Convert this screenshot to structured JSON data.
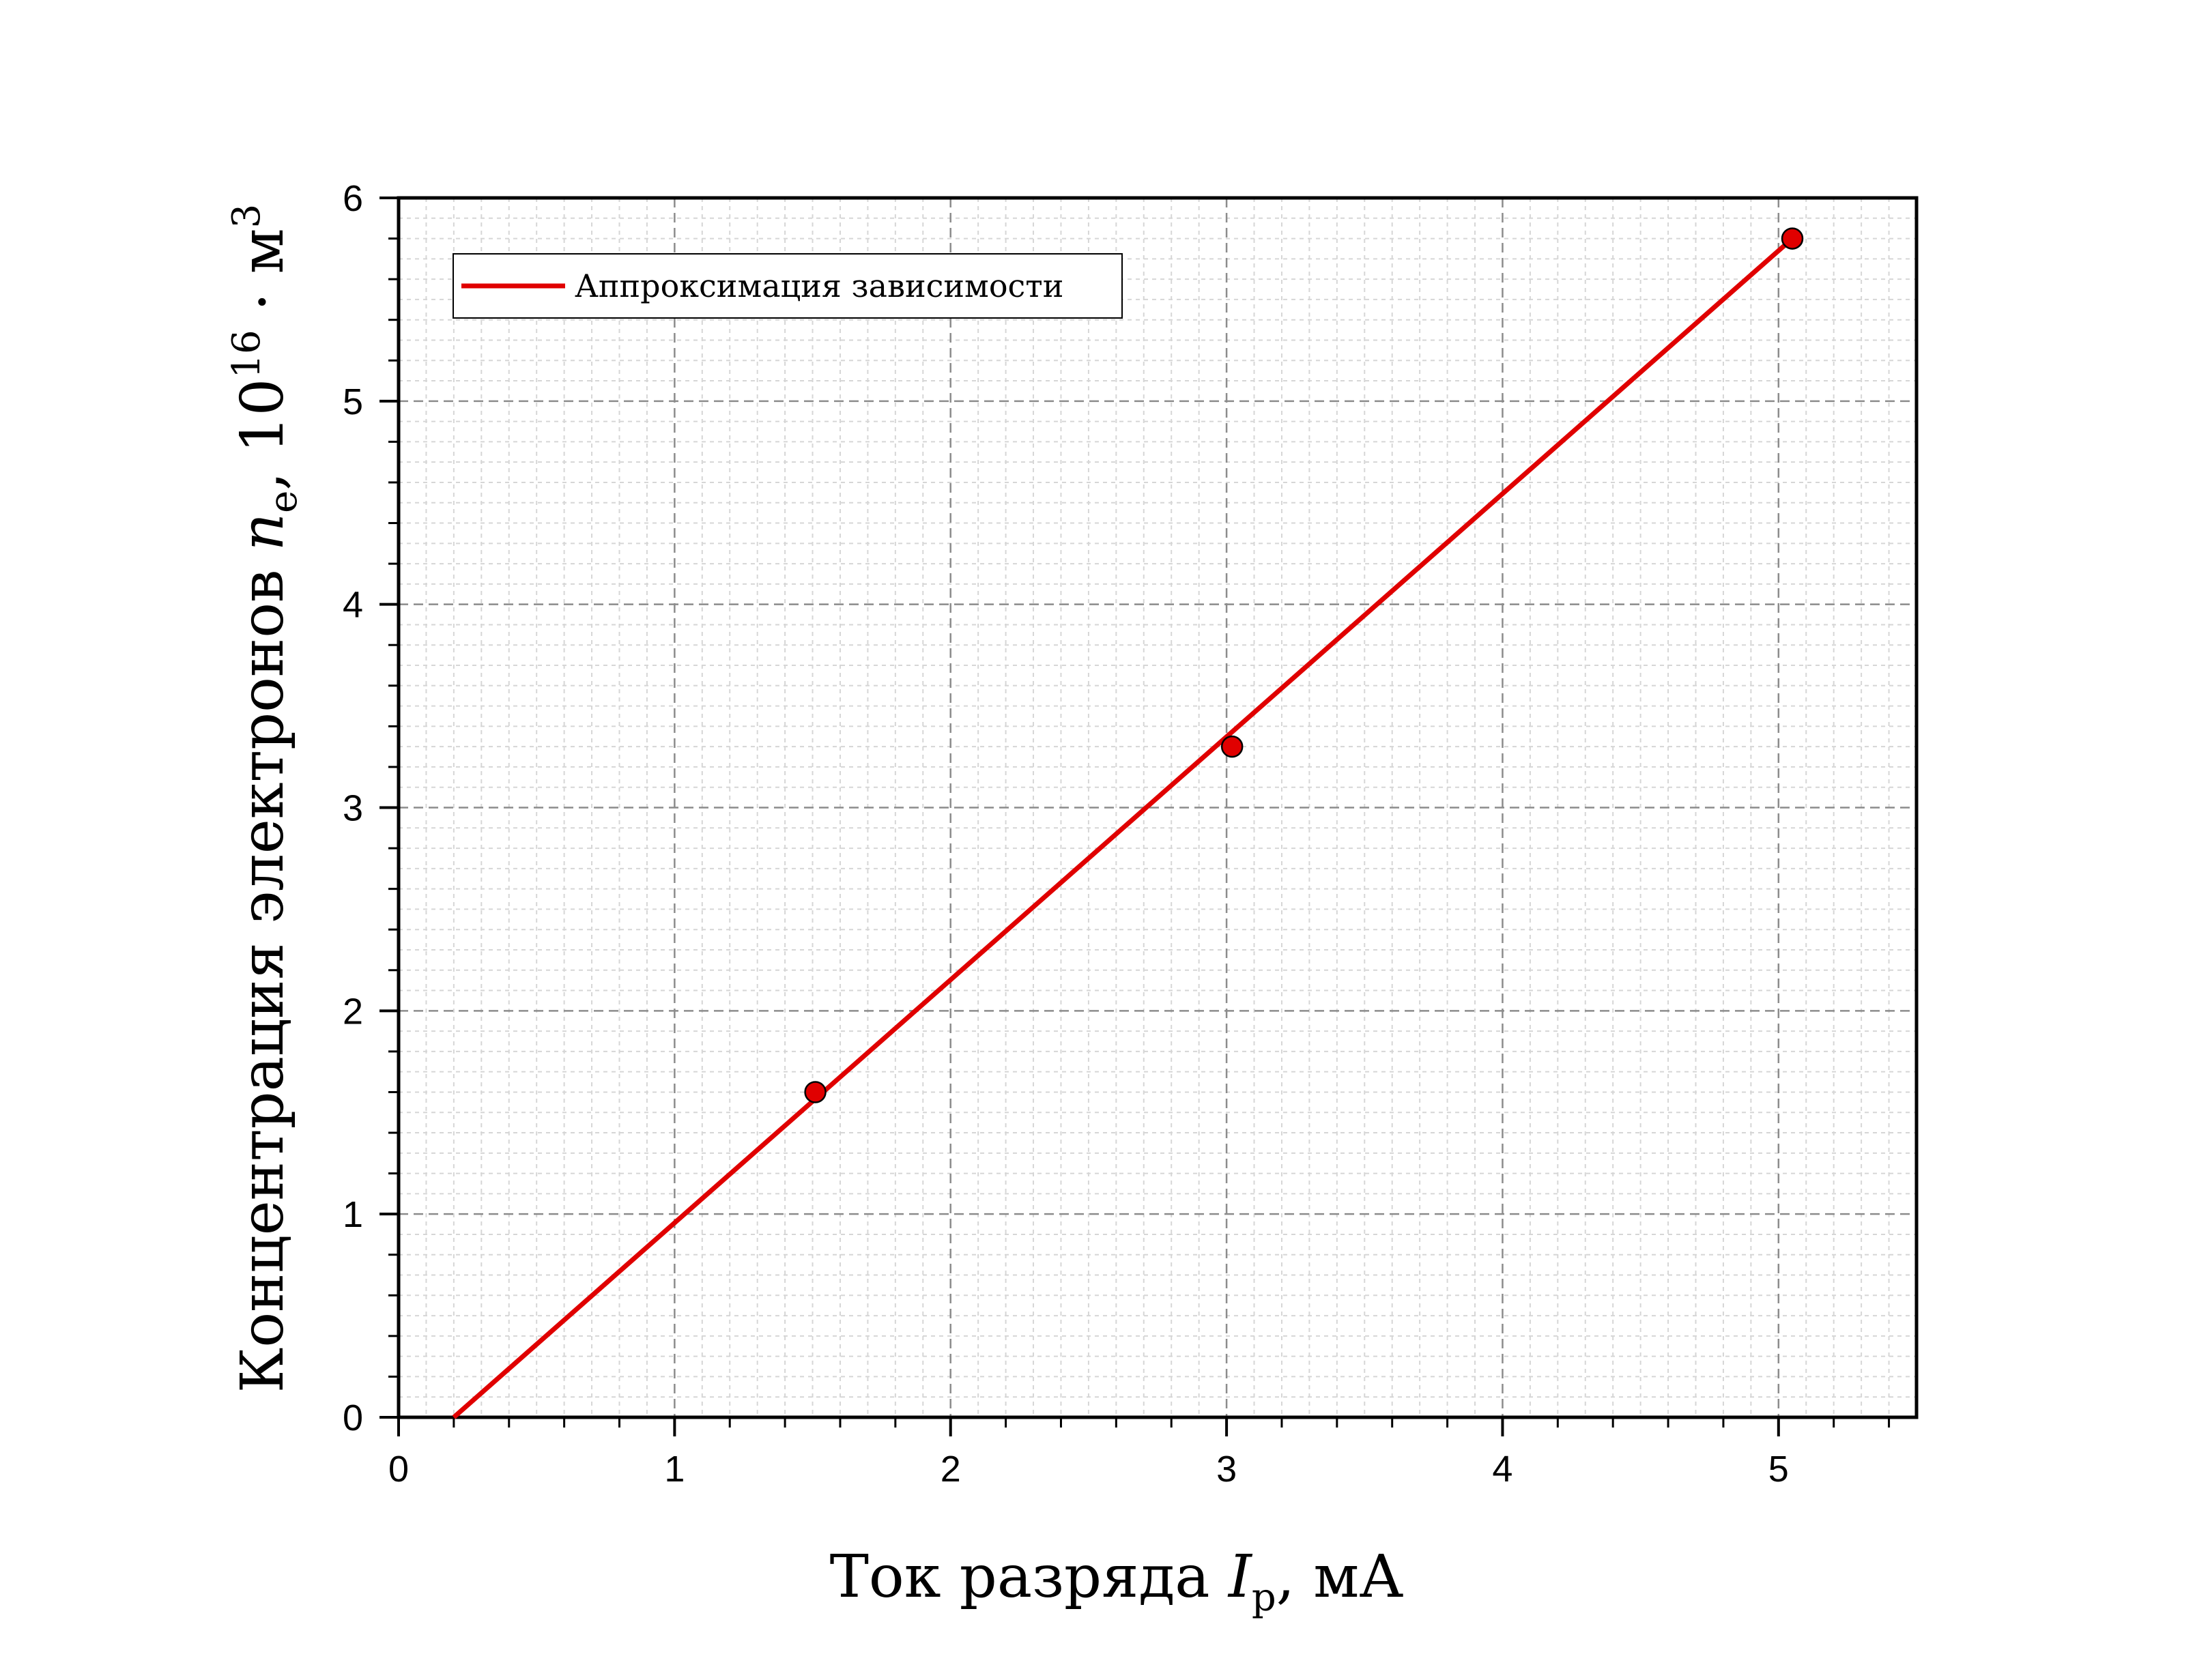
{
  "chart_data": {
    "type": "scatter",
    "xlim": [
      0,
      5.5
    ],
    "ylim": [
      0,
      6
    ],
    "x_ticks": [
      0,
      1,
      2,
      3,
      4,
      5
    ],
    "y_ticks": [
      0,
      1,
      2,
      3,
      4,
      5,
      6
    ],
    "x_tick_labels": [
      "0",
      "1",
      "2",
      "3",
      "4",
      "5"
    ],
    "y_tick_labels": [
      "0",
      "1",
      "2",
      "3",
      "4",
      "5",
      "6"
    ],
    "grid": true,
    "minor_grid": true,
    "legend_position": "top-left",
    "xlabel": {
      "prefix": "Ток разряда ",
      "symbol": "I",
      "subscript": "р",
      "suffix": ", мА"
    },
    "ylabel": {
      "prefix": "Концентрация электронов ",
      "symbol": "n",
      "subscript": "e",
      "middle": ", 10",
      "power": "16",
      "unit": " · м",
      "unit_power": "3"
    },
    "points": {
      "x": [
        1.51,
        3.02,
        5.05
      ],
      "y": [
        1.6,
        3.3,
        5.8
      ],
      "color": "#e00000"
    },
    "fit_line": {
      "name": "Аппроксимация зависимости",
      "x": [
        0.2,
        5.05
      ],
      "y": [
        0,
        5.8
      ],
      "color": "#e00000"
    }
  }
}
